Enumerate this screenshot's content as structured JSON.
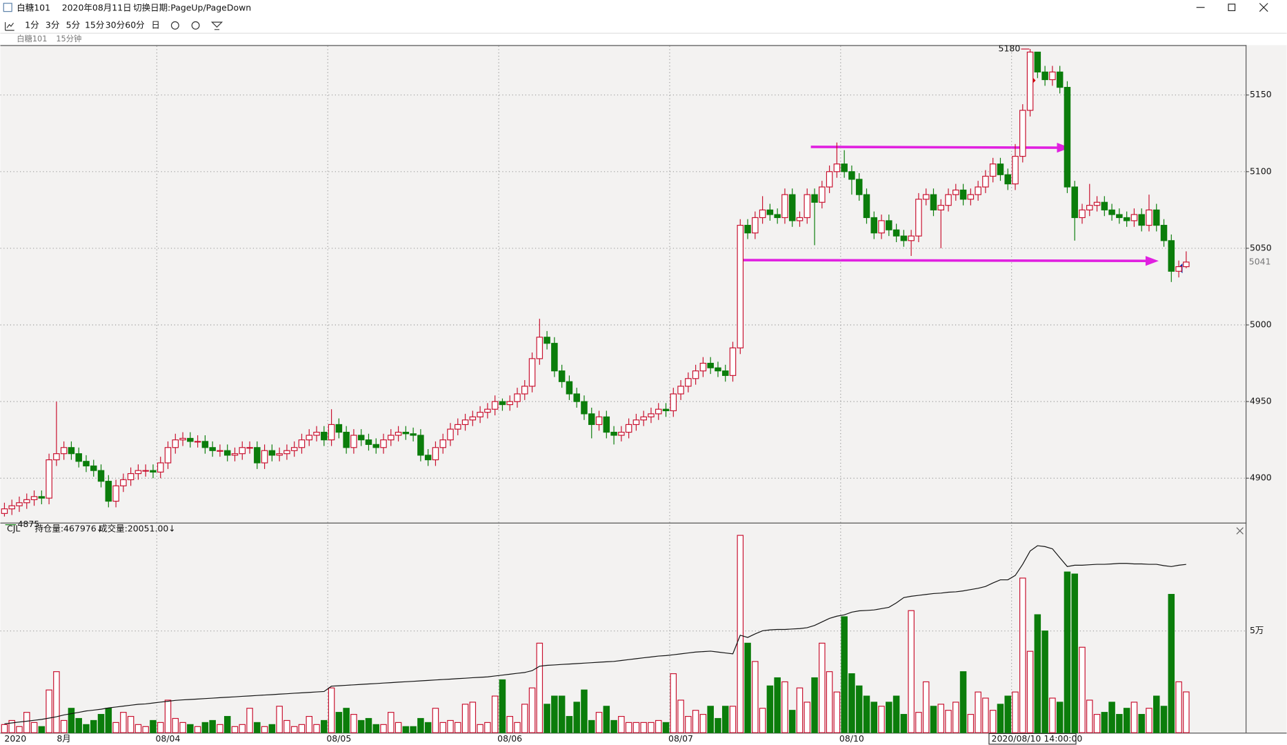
{
  "window": {
    "title": "白糖101",
    "date": "2020年08月11日",
    "hint": "切换日期:PageUp/PageDown"
  },
  "toolbar": [
    "1分",
    "3分",
    "5分",
    "15分",
    "30分",
    "60分",
    "日"
  ],
  "subheader": {
    "symbol": "白糖101",
    "period": "15分钟"
  },
  "chart_data": [
    {
      "type": "candlestick",
      "categories": [
        "2020",
        null,
        null,
        null,
        null,
        null,
        null,
        "8月",
        null,
        null,
        null,
        null,
        null,
        null,
        null,
        null,
        null,
        null,
        null,
        null,
        null,
        "08/04",
        null,
        null,
        null,
        null,
        null,
        null,
        null,
        null,
        null,
        null,
        null,
        null,
        null,
        null,
        null,
        null,
        null,
        null,
        null,
        null,
        null,
        null,
        "08/05",
        null,
        null,
        null,
        null,
        null,
        null,
        null,
        null,
        null,
        null,
        null,
        null,
        null,
        null,
        null,
        null,
        null,
        null,
        null,
        null,
        null,
        null,
        "08/06",
        null,
        null,
        null,
        null,
        null,
        null,
        null,
        null,
        null,
        null,
        null,
        null,
        null,
        null,
        null,
        null,
        null,
        null,
        null,
        null,
        null,
        null,
        "08/07",
        null,
        null,
        null,
        null,
        null,
        null,
        null,
        null,
        null,
        null,
        null,
        null,
        null,
        null,
        null,
        null,
        null,
        null,
        null,
        null,
        null,
        null,
        "08/10",
        null,
        null,
        null,
        null,
        null,
        null,
        null,
        null,
        null,
        null,
        null,
        null,
        null,
        null,
        null,
        null,
        null,
        null,
        null,
        null,
        null,
        null,
        "2020/08/10 14:00:00",
        null,
        null,
        null,
        null,
        null,
        null,
        null,
        null,
        null,
        null,
        null,
        null,
        null,
        null,
        null,
        null,
        null,
        null,
        null,
        null,
        null,
        null,
        null
      ],
      "open": [
        4877,
        4880,
        4882,
        4884,
        4886,
        4888,
        4887,
        4912,
        4916,
        4920,
        4916,
        4911,
        4908,
        4905,
        4898,
        4885,
        4895,
        4899,
        4903,
        4905,
        4905,
        4904,
        4910,
        4920,
        4925,
        4926,
        4924,
        4924,
        4920,
        4918,
        4918,
        4915,
        4916,
        4920,
        4920,
        4910,
        4918,
        4915,
        4916,
        4918,
        4920,
        4925,
        4928,
        4930,
        4925,
        4935,
        4930,
        4920,
        4928,
        4925,
        4922,
        4920,
        4925,
        4928,
        4930,
        4929,
        4928,
        4915,
        4912,
        4920,
        4925,
        4932,
        4935,
        4938,
        4940,
        4943,
        4945,
        4950,
        4948,
        4950,
        4955,
        4960,
        4978,
        4992,
        4988,
        4970,
        4963,
        4955,
        4950,
        4942,
        4935,
        4940,
        4930,
        4928,
        4930,
        4935,
        4938,
        4940,
        4942,
        4945,
        4944,
        4955,
        4960,
        4965,
        4970,
        4975,
        4972,
        4970,
        4967,
        4985,
        5065,
        5060,
        5070,
        5075,
        5072,
        5070,
        5085,
        5068,
        5070,
        5085,
        5080,
        5090,
        5100,
        5105,
        5100,
        5095,
        5085,
        5070,
        5060,
        5068,
        5062,
        5058,
        5055,
        5058,
        5082,
        5085,
        5075,
        5078,
        5085,
        5088,
        5082,
        5085,
        5090,
        5097,
        5105,
        5098,
        5092,
        5110,
        5140,
        5178,
        5165,
        5160,
        5165,
        5155,
        5090,
        5070,
        5075,
        5078,
        5080,
        5075,
        5072,
        5070,
        5068,
        5072,
        5065,
        5075,
        5065,
        5055,
        5035,
        5038
      ],
      "high": [
        4884,
        4886,
        4888,
        4890,
        4892,
        4892,
        4916,
        4950,
        4924,
        4924,
        4920,
        4915,
        4912,
        4909,
        4902,
        4899,
        4903,
        4907,
        4909,
        4909,
        4909,
        4914,
        4924,
        4929,
        4930,
        4930,
        4928,
        4928,
        4924,
        4922,
        4922,
        4920,
        4924,
        4924,
        4924,
        4922,
        4922,
        4920,
        4922,
        4924,
        4929,
        4932,
        4934,
        4934,
        4945,
        4939,
        4934,
        4932,
        4932,
        4929,
        4926,
        4929,
        4932,
        4934,
        4934,
        4933,
        4932,
        4919,
        4924,
        4929,
        4936,
        4939,
        4942,
        4944,
        4947,
        4949,
        4954,
        4952,
        4954,
        4959,
        4964,
        4982,
        5004,
        4996,
        4992,
        4974,
        4967,
        4959,
        4954,
        4946,
        4944,
        4944,
        4934,
        4934,
        4939,
        4942,
        4944,
        4946,
        4949,
        4949,
        4959,
        4964,
        4969,
        4974,
        4979,
        4979,
        4976,
        4974,
        4989,
        5069,
        5069,
        5074,
        5084,
        5079,
        5076,
        5089,
        5089,
        5074,
        5089,
        5089,
        5094,
        5104,
        5119,
        5114,
        5104,
        5099,
        5089,
        5074,
        5072,
        5072,
        5066,
        5062,
        5062,
        5086,
        5089,
        5089,
        5082,
        5089,
        5092,
        5092,
        5089,
        5094,
        5101,
        5109,
        5109,
        5102,
        5118,
        5144,
        5180,
        5177,
        5169,
        5169,
        5169,
        5159,
        5094,
        5079,
        5092,
        5084,
        5084,
        5079,
        5076,
        5074,
        5076,
        5076,
        5085,
        5079,
        5069,
        5059,
        5042,
        5048
      ],
      "low": [
        4875,
        4876,
        4878,
        4880,
        4882,
        4883,
        4883,
        4908,
        4912,
        4912,
        4907,
        4904,
        4901,
        4894,
        4881,
        4881,
        4891,
        4895,
        4899,
        4901,
        4900,
        4900,
        4906,
        4916,
        4921,
        4920,
        4920,
        4916,
        4914,
        4914,
        4911,
        4911,
        4912,
        4916,
        4906,
        4906,
        4911,
        4911,
        4912,
        4914,
        4916,
        4921,
        4924,
        4921,
        4921,
        4926,
        4916,
        4916,
        4921,
        4918,
        4916,
        4916,
        4921,
        4924,
        4925,
        4924,
        4911,
        4908,
        4908,
        4916,
        4921,
        4928,
        4931,
        4934,
        4936,
        4939,
        4941,
        4944,
        4944,
        4946,
        4951,
        4956,
        4974,
        4984,
        4966,
        4959,
        4951,
        4946,
        4938,
        4926,
        4931,
        4926,
        4922,
        4924,
        4926,
        4931,
        4934,
        4936,
        4938,
        4940,
        4940,
        4951,
        4956,
        4961,
        4966,
        4968,
        4966,
        4963,
        4963,
        4981,
        5056,
        5056,
        5066,
        5068,
        5066,
        5066,
        5064,
        5064,
        5066,
        5052,
        5076,
        5086,
        5096,
        5096,
        5085,
        5081,
        5066,
        5056,
        5056,
        5058,
        5054,
        5051,
        5045,
        5054,
        5078,
        5071,
        5050,
        5074,
        5081,
        5078,
        5078,
        5081,
        5086,
        5093,
        5094,
        5088,
        5088,
        5106,
        5136,
        5161,
        5156,
        5156,
        5151,
        5086,
        5055,
        5066,
        5071,
        5074,
        5071,
        5068,
        5066,
        5064,
        5064,
        5061,
        5061,
        5061,
        5051,
        5028,
        5031,
        5037
      ],
      "close": [
        4880,
        4882,
        4884,
        4886,
        4888,
        4887,
        4912,
        4916,
        4920,
        4916,
        4911,
        4908,
        4905,
        4898,
        4885,
        4895,
        4899,
        4903,
        4905,
        4905,
        4904,
        4910,
        4920,
        4925,
        4926,
        4924,
        4924,
        4920,
        4918,
        4918,
        4915,
        4916,
        4920,
        4920,
        4910,
        4918,
        4915,
        4916,
        4918,
        4920,
        4925,
        4928,
        4930,
        4925,
        4935,
        4930,
        4920,
        4928,
        4925,
        4922,
        4920,
        4925,
        4928,
        4930,
        4929,
        4928,
        4915,
        4912,
        4920,
        4925,
        4932,
        4935,
        4938,
        4940,
        4943,
        4945,
        4950,
        4948,
        4950,
        4955,
        4960,
        4978,
        4992,
        4988,
        4970,
        4963,
        4955,
        4950,
        4942,
        4935,
        4940,
        4930,
        4928,
        4930,
        4935,
        4938,
        4940,
        4942,
        4945,
        4944,
        4955,
        4960,
        4965,
        4970,
        4975,
        4972,
        4970,
        4967,
        4985,
        5065,
        5060,
        5070,
        5075,
        5072,
        5070,
        5085,
        5068,
        5070,
        5085,
        5080,
        5090,
        5100,
        5105,
        5100,
        5095,
        5085,
        5070,
        5060,
        5068,
        5062,
        5058,
        5055,
        5058,
        5082,
        5085,
        5075,
        5078,
        5085,
        5088,
        5082,
        5085,
        5090,
        5097,
        5105,
        5098,
        5092,
        5110,
        5140,
        5178,
        5165,
        5160,
        5165,
        5155,
        5090,
        5070,
        5075,
        5078,
        5080,
        5075,
        5072,
        5070,
        5068,
        5072,
        5065,
        5075,
        5065,
        5055,
        5035,
        5038,
        5041
      ],
      "up_color": "#c8102e",
      "down_color": "#0b7d0b",
      "ylim": [
        4871,
        5182
      ],
      "yticks": [
        4900,
        4950,
        5000,
        5050,
        5100,
        5150
      ],
      "grid": true,
      "max_label": 5180,
      "min_label": 4875,
      "last_label": 5041
    },
    {
      "type": "bar",
      "legend": [
        "CJL",
        "持仓量:467976↓",
        "成交量:20051.00↓"
      ],
      "ylim": [
        0,
        98000
      ],
      "yticks": [
        {
          "value": 50000,
          "label": "5万"
        }
      ],
      "y2lim": [
        430000,
        475000
      ],
      "series": [
        {
          "values": [
            4000,
            6000,
            3000,
            10000,
            5000,
            3000,
            21000,
            30000,
            6000,
            12000,
            7000,
            4000,
            6000,
            9000,
            12000,
            5000,
            10000,
            8000,
            4000,
            3000,
            6000,
            5000,
            16000,
            7000,
            5000,
            4000,
            3000,
            5000,
            6000,
            4000,
            8000,
            3000,
            4000,
            12000,
            5000,
            3000,
            4000,
            13000,
            6000,
            3000,
            4000,
            8000,
            4000,
            6000,
            22000,
            10000,
            12000,
            9000,
            6000,
            7000,
            4000,
            4000,
            10000,
            5000,
            3000,
            3000,
            7000,
            5000,
            12000,
            5000,
            6000,
            5000,
            14000,
            15000,
            4000,
            5000,
            18000,
            26000,
            8000,
            5000,
            14000,
            22000,
            44000,
            14000,
            18000,
            18000,
            8000,
            15000,
            21000,
            6000,
            10000,
            13000,
            6000,
            8000,
            5000,
            5000,
            5000,
            5000,
            6000,
            5000,
            29000,
            16000,
            8000,
            11000,
            9000,
            13000,
            7000,
            13000,
            13000,
            97000,
            44000,
            35000,
            12000,
            23000,
            27000,
            25000,
            11000,
            22000,
            15000,
            27000,
            44000,
            30000,
            20000,
            57000,
            29000,
            23000,
            18000,
            15000,
            13000,
            15000,
            18000,
            9000,
            60000,
            10000,
            25000,
            13000,
            14000,
            11000,
            15000,
            30000,
            9000,
            20000,
            17000,
            11000,
            14000,
            18000,
            20000,
            76000,
            40000,
            58000,
            50000,
            17000,
            15000,
            79000,
            78000,
            42000,
            16000,
            9000,
            10000,
            15000,
            9000,
            12000,
            15000,
            9000,
            12000,
            18000,
            13000,
            68000,
            25000,
            20051
          ]
        },
        {
          "type": "line",
          "axis": "y2",
          "color": "#111111",
          "values": [
            432000,
            432200,
            432400,
            432600,
            432800,
            433000,
            433300,
            433600,
            434000,
            434300,
            434600,
            434900,
            435100,
            435300,
            435600,
            435800,
            436000,
            436200,
            436400,
            436500,
            436700,
            436900,
            437100,
            437300,
            437400,
            437500,
            437600,
            437700,
            437800,
            437900,
            438000,
            438100,
            438200,
            438300,
            438400,
            438500,
            438600,
            438700,
            438800,
            438900,
            439000,
            439100,
            439200,
            439300,
            440500,
            440600,
            440700,
            440800,
            440900,
            441000,
            441100,
            441200,
            441300,
            441400,
            441500,
            441600,
            441700,
            441800,
            441900,
            442000,
            442100,
            442200,
            442300,
            442400,
            442500,
            442600,
            442800,
            443000,
            443200,
            443400,
            443600,
            444000,
            445000,
            445200,
            445300,
            445400,
            445500,
            445600,
            445700,
            445800,
            445900,
            446000,
            446100,
            446300,
            446500,
            446700,
            446900,
            447100,
            447300,
            447400,
            447600,
            447800,
            448000,
            448200,
            448300,
            448400,
            448200,
            448000,
            447800,
            452000,
            451500,
            452300,
            453000,
            453200,
            453300,
            453300,
            453400,
            453500,
            453700,
            454200,
            455000,
            455800,
            456300,
            456600,
            457200,
            457500,
            457600,
            457700,
            458000,
            458300,
            459300,
            460500,
            460800,
            461000,
            461200,
            461400,
            461500,
            461700,
            461800,
            462000,
            462300,
            462600,
            463000,
            463800,
            464500,
            464500,
            465500,
            468000,
            471000,
            472200,
            472000,
            471500,
            469500,
            467500,
            467800,
            467800,
            467900,
            468000,
            468000,
            468100,
            468200,
            468200,
            468100,
            468100,
            468000,
            468000,
            467700,
            467500,
            467800,
            467976
          ]
        }
      ]
    }
  ]
}
